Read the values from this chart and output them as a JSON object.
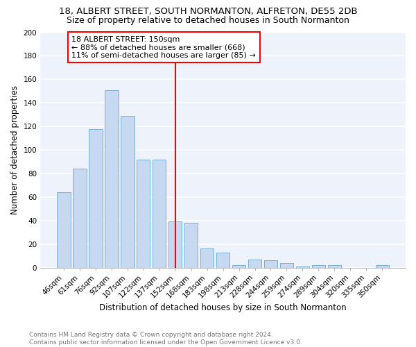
{
  "title1": "18, ALBERT STREET, SOUTH NORMANTON, ALFRETON, DE55 2DB",
  "title2": "Size of property relative to detached houses in South Normanton",
  "xlabel": "Distribution of detached houses by size in South Normanton",
  "ylabel": "Number of detached properties",
  "footnote": "Contains HM Land Registry data © Crown copyright and database right 2024.\nContains public sector information licensed under the Open Government Licence v3.0.",
  "categories": [
    "46sqm",
    "61sqm",
    "76sqm",
    "92sqm",
    "107sqm",
    "122sqm",
    "137sqm",
    "152sqm",
    "168sqm",
    "183sqm",
    "198sqm",
    "213sqm",
    "228sqm",
    "244sqm",
    "259sqm",
    "274sqm",
    "289sqm",
    "304sqm",
    "320sqm",
    "335sqm",
    "350sqm"
  ],
  "values": [
    64,
    84,
    118,
    151,
    129,
    92,
    92,
    39,
    38,
    16,
    13,
    2,
    7,
    6,
    4,
    1,
    2,
    2,
    0,
    0,
    2
  ],
  "bar_color": "#c6d9f1",
  "bar_edge_color": "#7bafd4",
  "vline_color": "red",
  "annotation_title": "18 ALBERT STREET: 150sqm",
  "annotation_line1": "← 88% of detached houses are smaller (668)",
  "annotation_line2": "11% of semi-detached houses are larger (85) →",
  "annotation_box_color": "red",
  "ylim": [
    0,
    200
  ],
  "yticks": [
    0,
    20,
    40,
    60,
    80,
    100,
    120,
    140,
    160,
    180,
    200
  ],
  "background_color": "#eef2fb",
  "grid_color": "white",
  "title1_fontsize": 9.5,
  "title2_fontsize": 9,
  "xlabel_fontsize": 8.5,
  "ylabel_fontsize": 8.5,
  "tick_fontsize": 7.5,
  "footnote_fontsize": 6.5,
  "annot_fontsize": 8
}
